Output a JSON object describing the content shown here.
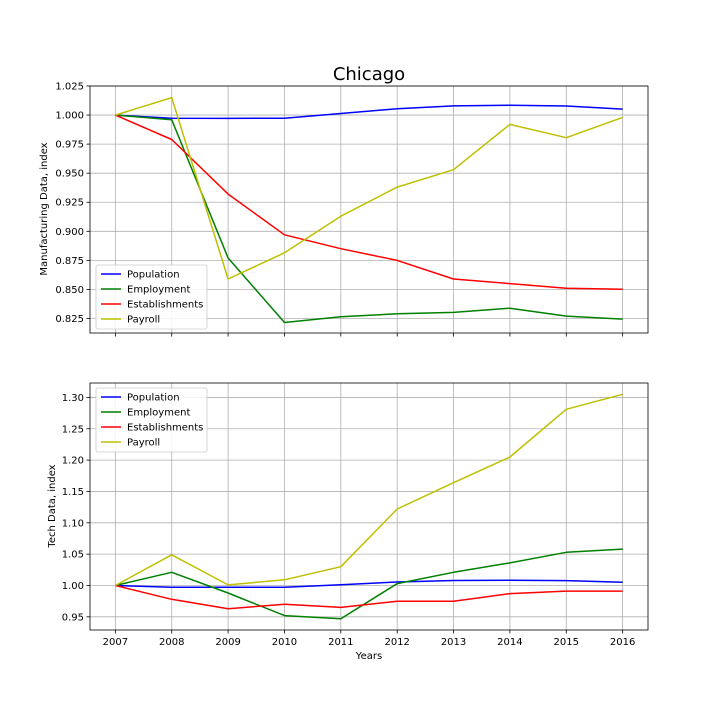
{
  "chart_data": [
    {
      "type": "line",
      "title": "Chicago",
      "xlabel": "",
      "ylabel": "Manufacturing Data, index",
      "x": [
        2007,
        2008,
        2009,
        2010,
        2011,
        2012,
        2013,
        2014,
        2015,
        2016
      ],
      "xlim": [
        2006.55,
        2016.45
      ],
      "ylim": [
        0.8125,
        1.025
      ],
      "yticks": [
        0.825,
        0.85,
        0.875,
        0.9,
        0.925,
        0.95,
        0.975,
        1.0,
        1.025
      ],
      "ytick_labels": [
        "0.825",
        "0.850",
        "0.875",
        "0.900",
        "0.925",
        "0.950",
        "0.975",
        "1.000",
        "1.025"
      ],
      "show_xtick_labels": false,
      "grid": true,
      "legend_position": "lower-left",
      "series": [
        {
          "name": "Population",
          "color": "#0000ff",
          "values": [
            1.0,
            0.9972,
            0.9971,
            0.9973,
            1.0013,
            1.0055,
            1.0079,
            1.0085,
            1.0078,
            1.0051
          ]
        },
        {
          "name": "Employment",
          "color": "#008000",
          "values": [
            1.0,
            0.996,
            0.877,
            0.8215,
            0.8265,
            0.829,
            0.8302,
            0.8338,
            0.827,
            0.8245
          ]
        },
        {
          "name": "Establishments",
          "color": "#ff0000",
          "values": [
            1.0,
            0.979,
            0.932,
            0.897,
            0.885,
            0.875,
            0.859,
            0.855,
            0.851,
            0.8502
          ]
        },
        {
          "name": "Payroll",
          "color": "#bfbf00",
          "values": [
            1.0,
            1.015,
            0.859,
            0.8815,
            0.913,
            0.938,
            0.953,
            0.992,
            0.9805,
            0.998
          ]
        }
      ]
    },
    {
      "type": "line",
      "title": "",
      "xlabel": "Years",
      "ylabel": "Tech Data, index",
      "x": [
        2007,
        2008,
        2009,
        2010,
        2011,
        2012,
        2013,
        2014,
        2015,
        2016
      ],
      "xlim": [
        2006.55,
        2016.45
      ],
      "ylim": [
        0.929,
        1.323
      ],
      "yticks": [
        0.95,
        1.0,
        1.05,
        1.1,
        1.15,
        1.2,
        1.25,
        1.3
      ],
      "ytick_labels": [
        "0.95",
        "1.00",
        "1.05",
        "1.10",
        "1.15",
        "1.20",
        "1.25",
        "1.30"
      ],
      "xtick_labels": [
        "2007",
        "2008",
        "2009",
        "2010",
        "2011",
        "2012",
        "2013",
        "2014",
        "2015",
        "2016"
      ],
      "show_xtick_labels": true,
      "grid": true,
      "legend_position": "upper-left",
      "series": [
        {
          "name": "Population",
          "color": "#0000ff",
          "values": [
            1.0,
            0.9972,
            0.9971,
            0.9973,
            1.0013,
            1.0055,
            1.0079,
            1.0085,
            1.0078,
            1.0051
          ]
        },
        {
          "name": "Employment",
          "color": "#008000",
          "values": [
            1.0,
            1.021,
            0.988,
            0.952,
            0.947,
            1.003,
            1.021,
            1.036,
            1.053,
            1.058
          ]
        },
        {
          "name": "Establishments",
          "color": "#ff0000",
          "values": [
            1.0,
            0.978,
            0.963,
            0.97,
            0.965,
            0.975,
            0.975,
            0.987,
            0.991,
            0.991
          ]
        },
        {
          "name": "Payroll",
          "color": "#bfbf00",
          "values": [
            1.0,
            1.049,
            1.001,
            1.009,
            1.03,
            1.122,
            1.164,
            1.205,
            1.281,
            1.305
          ]
        }
      ]
    }
  ]
}
